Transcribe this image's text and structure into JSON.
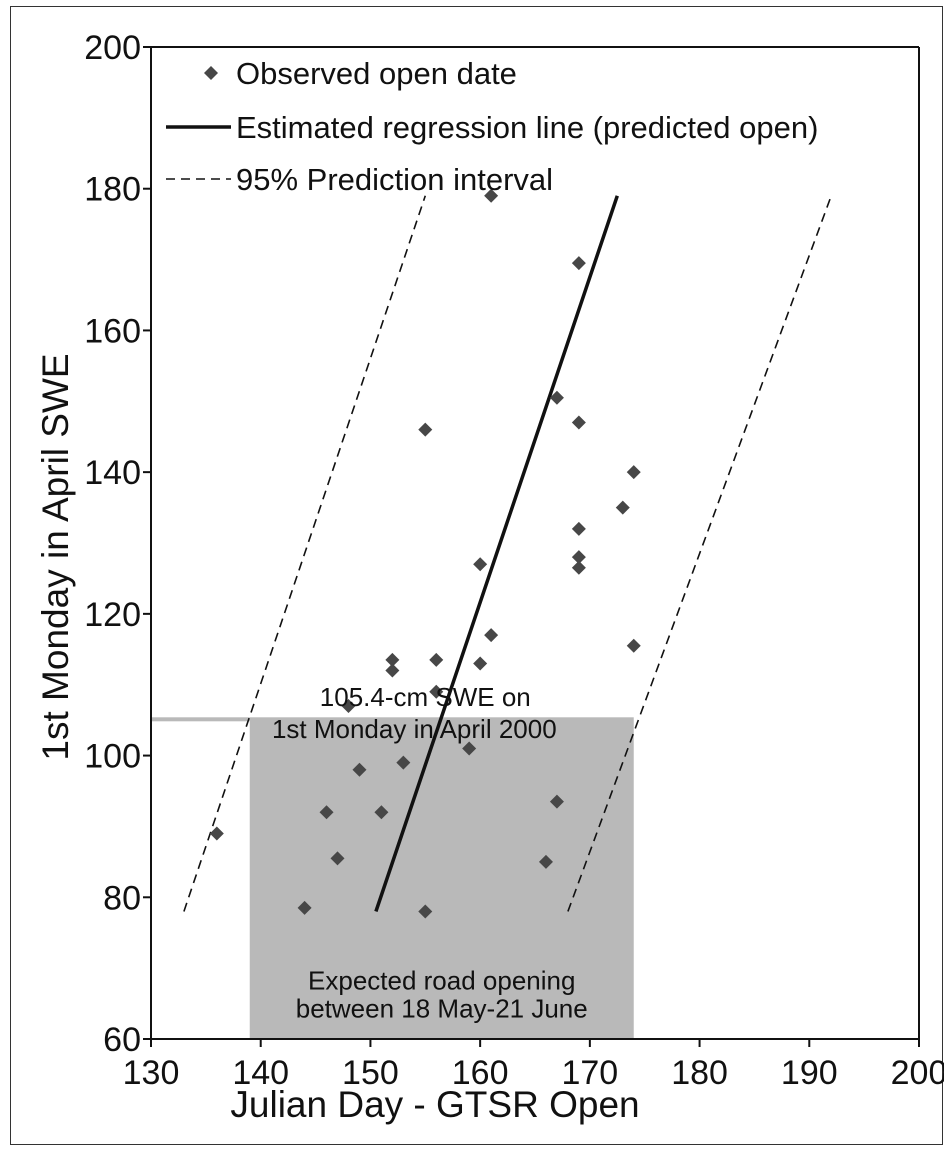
{
  "chart_data": {
    "type": "scatter",
    "xlabel": "Julian Day - GTSR Open",
    "ylabel": "1st Monday in April SWE",
    "xlim": [
      130,
      200
    ],
    "ylim": [
      60,
      200
    ],
    "xticks": [
      130,
      140,
      150,
      160,
      170,
      180,
      190,
      200
    ],
    "yticks": [
      60,
      80,
      100,
      120,
      140,
      160,
      180,
      200
    ],
    "grid": false,
    "legend_position": "top-left",
    "legend": [
      {
        "label": "Observed open date",
        "marker": "diamond"
      },
      {
        "label": "Estimated regression line (predicted open)",
        "marker": "solid-line"
      },
      {
        "label": "95% Prediction interval",
        "marker": "dashed-line"
      }
    ],
    "series": [
      {
        "name": "Observed open date",
        "type": "scatter",
        "points": [
          [
            136,
            89
          ],
          [
            144,
            78.5
          ],
          [
            146,
            92
          ],
          [
            147,
            85.5
          ],
          [
            148,
            107
          ],
          [
            149,
            98
          ],
          [
            151,
            92
          ],
          [
            152,
            113.5
          ],
          [
            152,
            112
          ],
          [
            153,
            99
          ],
          [
            155,
            146
          ],
          [
            155,
            78
          ],
          [
            156,
            113.5
          ],
          [
            156,
            109
          ],
          [
            159,
            101
          ],
          [
            160,
            127
          ],
          [
            160,
            113
          ],
          [
            161,
            117
          ],
          [
            161,
            179
          ],
          [
            166,
            85
          ],
          [
            167,
            150.5
          ],
          [
            167,
            93.5
          ],
          [
            169,
            169.5
          ],
          [
            169,
            147
          ],
          [
            169,
            132
          ],
          [
            169,
            128
          ],
          [
            169,
            126.5
          ],
          [
            173,
            135
          ],
          [
            174,
            140
          ],
          [
            174,
            115.5
          ]
        ]
      },
      {
        "name": "Estimated regression line (predicted open)",
        "type": "line",
        "style": "solid",
        "x": [
          150.5,
          172.5
        ],
        "y": [
          78,
          179
        ]
      },
      {
        "name": "95% Prediction interval",
        "type": "line",
        "style": "dashed",
        "segments": [
          {
            "x": [
              133,
              155
            ],
            "y": [
              78,
              179
            ]
          },
          {
            "x": [
              168,
              192
            ],
            "y": [
              78,
              179
            ]
          }
        ]
      }
    ],
    "shaded_region": {
      "x": [
        139,
        174
      ],
      "y": [
        60,
        105.4
      ],
      "color": "#b9b9b9",
      "threshold_y": 105.4,
      "threshold_from_x": 130
    },
    "annotations": [
      {
        "text": "105.4-cm SWE on",
        "x": 155,
        "y": 107
      },
      {
        "text": "1st Monday in April 2000",
        "x": 154,
        "y": 102.5
      },
      {
        "text": "Expected road opening",
        "x": 156.5,
        "y": 67
      },
      {
        "text": "between 18 May-21 June",
        "x": 156.5,
        "y": 63
      }
    ],
    "colors": {
      "marker": "#474747",
      "line": "#111111",
      "shade": "#b9b9b9"
    }
  }
}
